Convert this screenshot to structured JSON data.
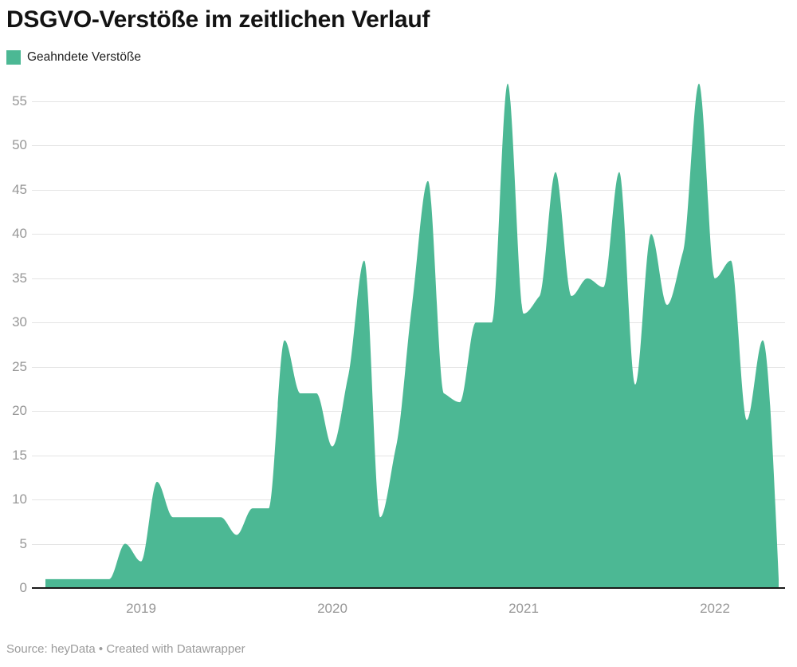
{
  "title": "DSGVO-Verstöße im zeitlichen Verlauf",
  "legend": {
    "label": "Geahndete Verstöße"
  },
  "footer": "Source: heyData • Created with Datawrapper",
  "colors": {
    "area": "#4cb894",
    "grid": "#e4e4e4",
    "axis_text": "#979797",
    "baseline": "#1a1a1a",
    "title_text": "#131313",
    "legend_text": "#1f1f1f",
    "footer_text": "#9b9b9b"
  },
  "chart_data": {
    "type": "area",
    "title": "DSGVO-Verstöße im zeitlichen Verlauf",
    "series": [
      {
        "name": "Geahndete Verstöße",
        "values": [
          1,
          1,
          1,
          1,
          1,
          5,
          3,
          12,
          8,
          8,
          8,
          8,
          6,
          9,
          9,
          28,
          22,
          22,
          16,
          24,
          37,
          8,
          16,
          32,
          46,
          22,
          21,
          30,
          30,
          57,
          31,
          33,
          47,
          33,
          35,
          34,
          47,
          23,
          40,
          32,
          38,
          57,
          35,
          37,
          19,
          28,
          1
        ]
      }
    ],
    "x": [
      "2018-07",
      "2018-08",
      "2018-09",
      "2018-10",
      "2018-11",
      "2018-12",
      "2019-01",
      "2019-02",
      "2019-03",
      "2019-04",
      "2019-05",
      "2019-06",
      "2019-07",
      "2019-08",
      "2019-09",
      "2019-10",
      "2019-11",
      "2019-12",
      "2020-01",
      "2020-02",
      "2020-03",
      "2020-04",
      "2020-05",
      "2020-06",
      "2020-07",
      "2020-08",
      "2020-09",
      "2020-10",
      "2020-11",
      "2020-12",
      "2021-01",
      "2021-02",
      "2021-03",
      "2021-04",
      "2021-05",
      "2021-06",
      "2021-07",
      "2021-08",
      "2021-09",
      "2021-10",
      "2021-11",
      "2021-12",
      "2022-01",
      "2022-02",
      "2022-03",
      "2022-04",
      "2022-05"
    ],
    "xticks": [
      "2019",
      "2020",
      "2021",
      "2022"
    ],
    "yticks": [
      0,
      5,
      10,
      15,
      20,
      25,
      30,
      35,
      40,
      45,
      50,
      55
    ],
    "ylim": [
      0,
      57
    ],
    "grid": true,
    "legend_position": "top-left",
    "curve": "monotone"
  }
}
